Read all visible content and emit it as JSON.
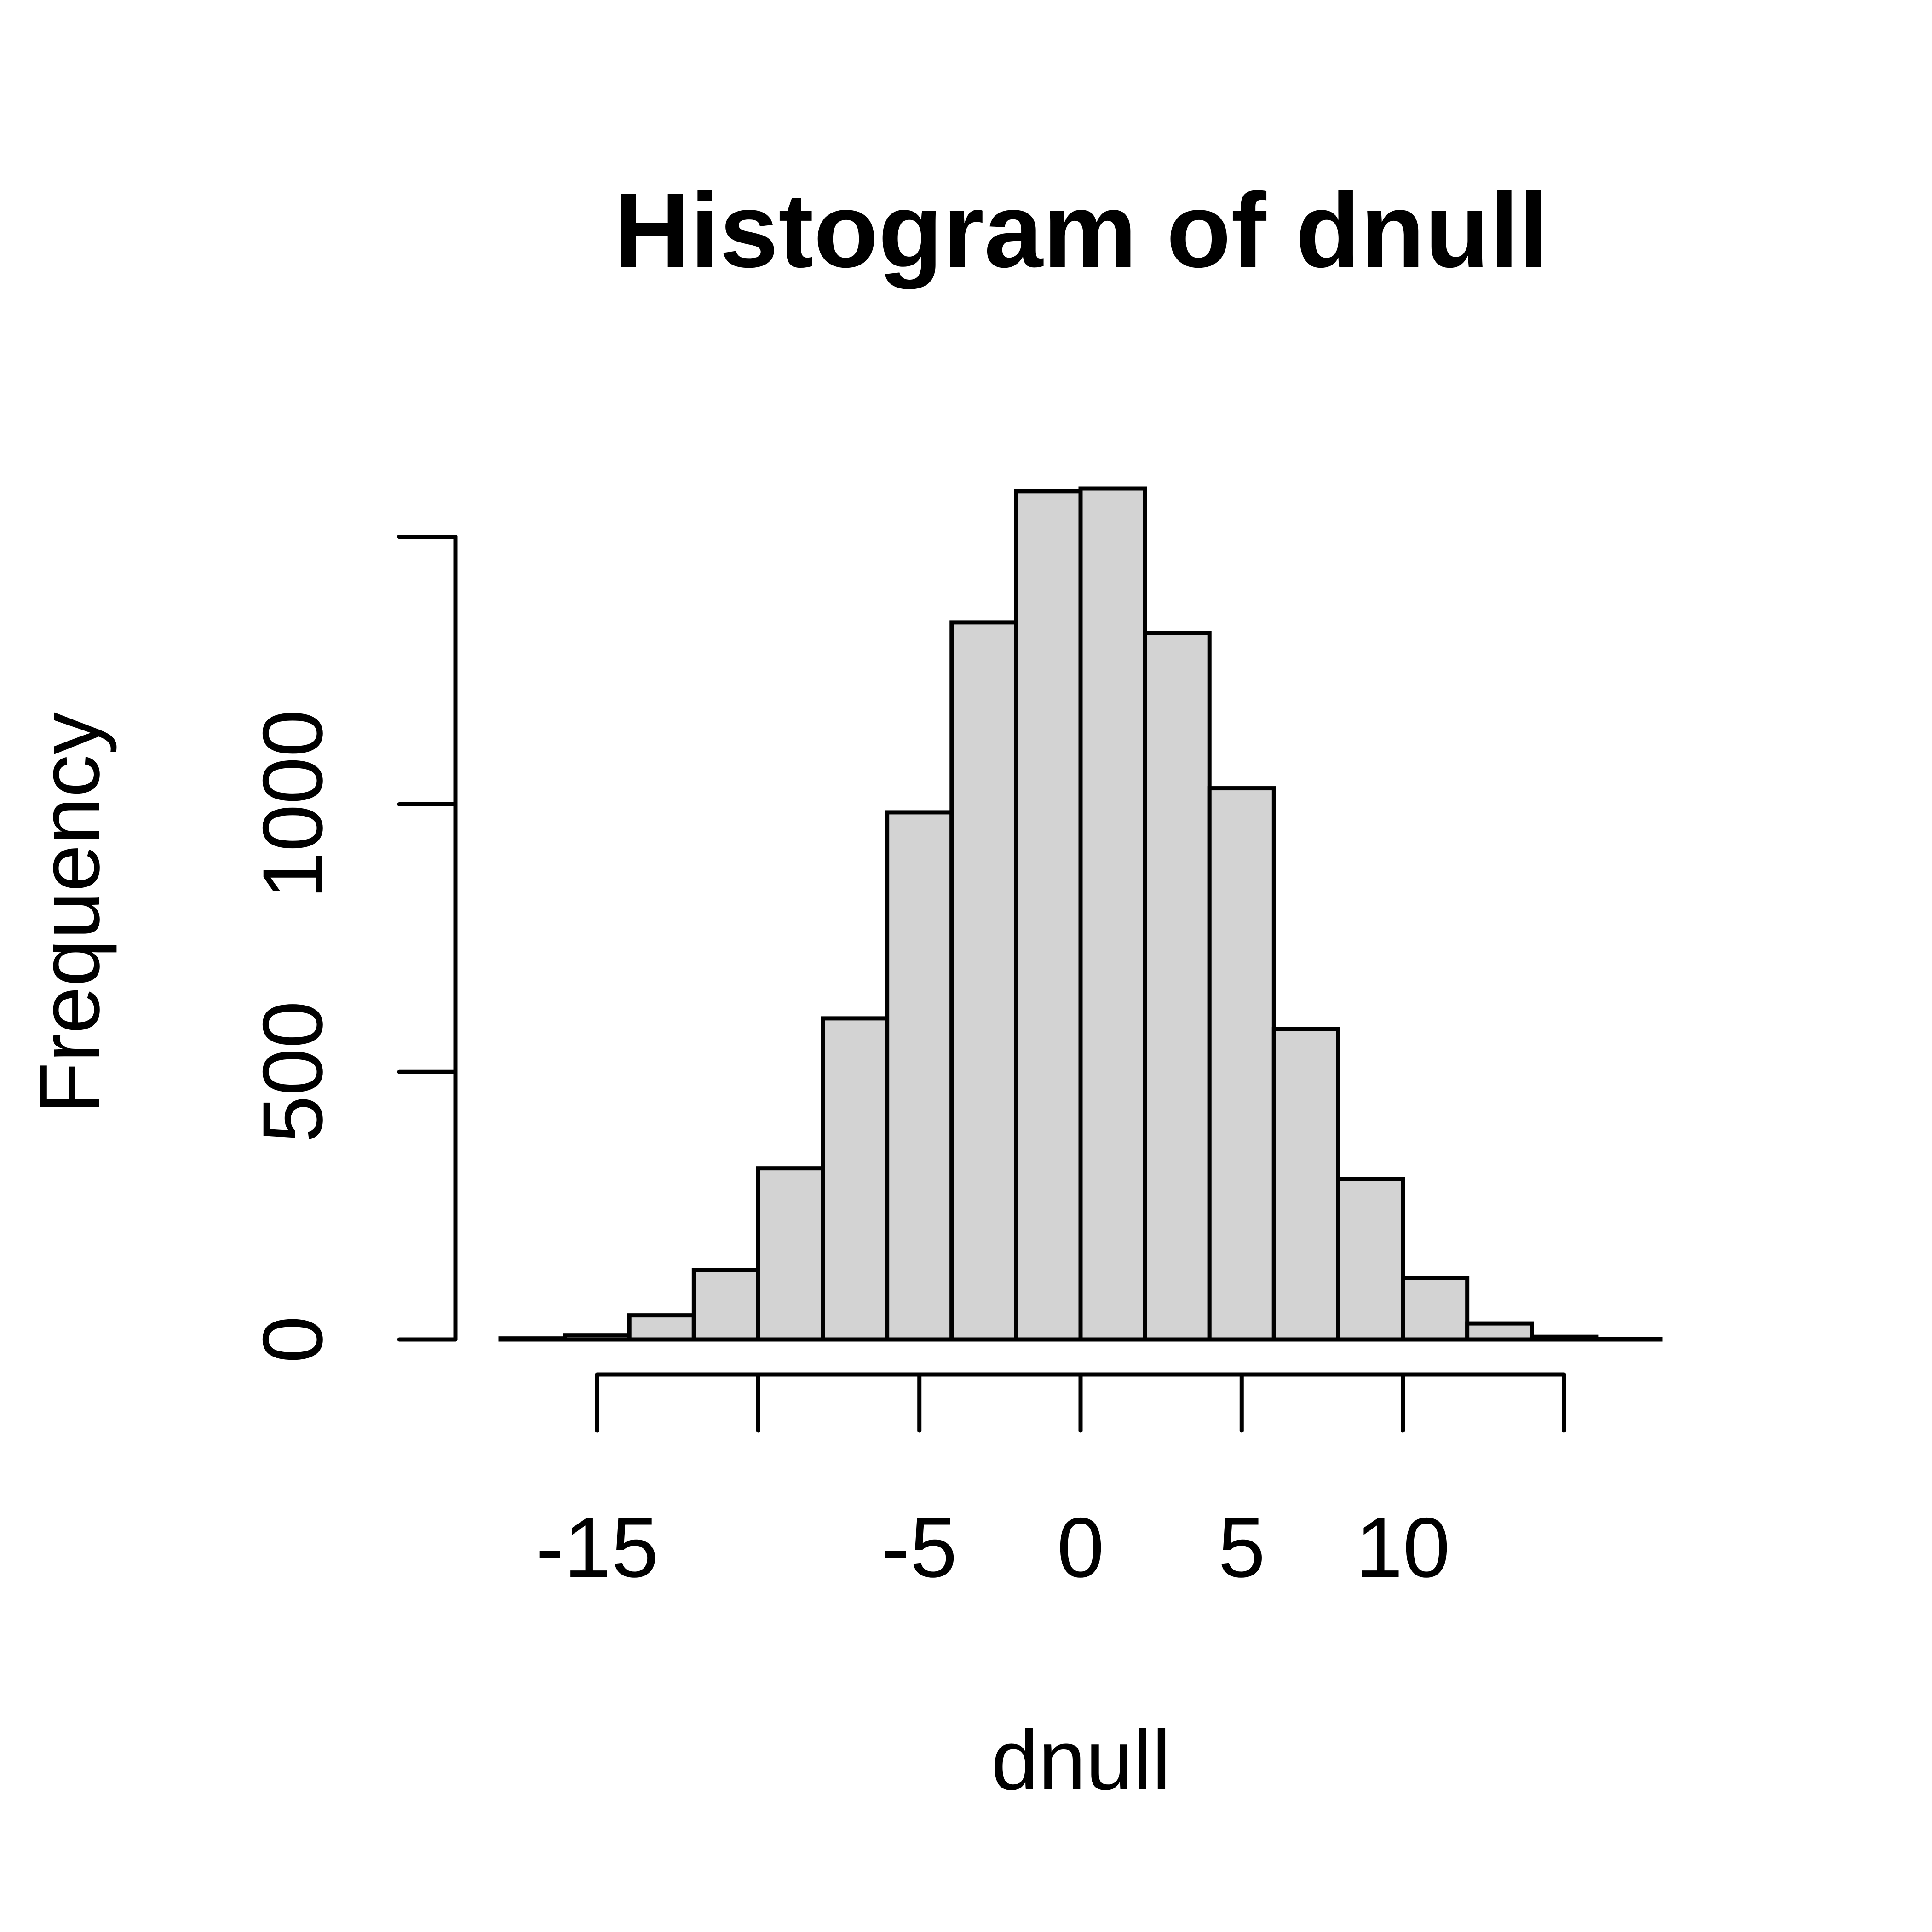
{
  "chart_data": {
    "type": "bar",
    "title": "Histogram of dnull",
    "xlabel": "dnull",
    "ylabel": "Frequency",
    "bin_edges": [
      -18,
      -16,
      -14,
      -12,
      -10,
      -8,
      -6,
      -4,
      -2,
      0,
      2,
      4,
      6,
      8,
      10,
      12,
      14,
      16,
      18
    ],
    "values": [
      2,
      8,
      45,
      130,
      320,
      600,
      985,
      1340,
      1585,
      1590,
      1320,
      1030,
      580,
      300,
      115,
      30,
      5,
      1
    ],
    "xticks": [
      -15,
      -10,
      -5,
      0,
      5,
      10,
      15
    ],
    "xtick_labels": [
      "-15",
      "",
      "-5",
      "0",
      "5",
      "10",
      ""
    ],
    "yticks": [
      0,
      500,
      1000,
      1500
    ],
    "ytick_labels": [
      "0",
      "500",
      "1000",
      ""
    ],
    "xlim": [
      -18,
      18
    ],
    "ylim": [
      0,
      1590
    ],
    "bar_color": "#d3d3d3",
    "edge_color": "#000000",
    "grid": false,
    "legend": "none"
  }
}
